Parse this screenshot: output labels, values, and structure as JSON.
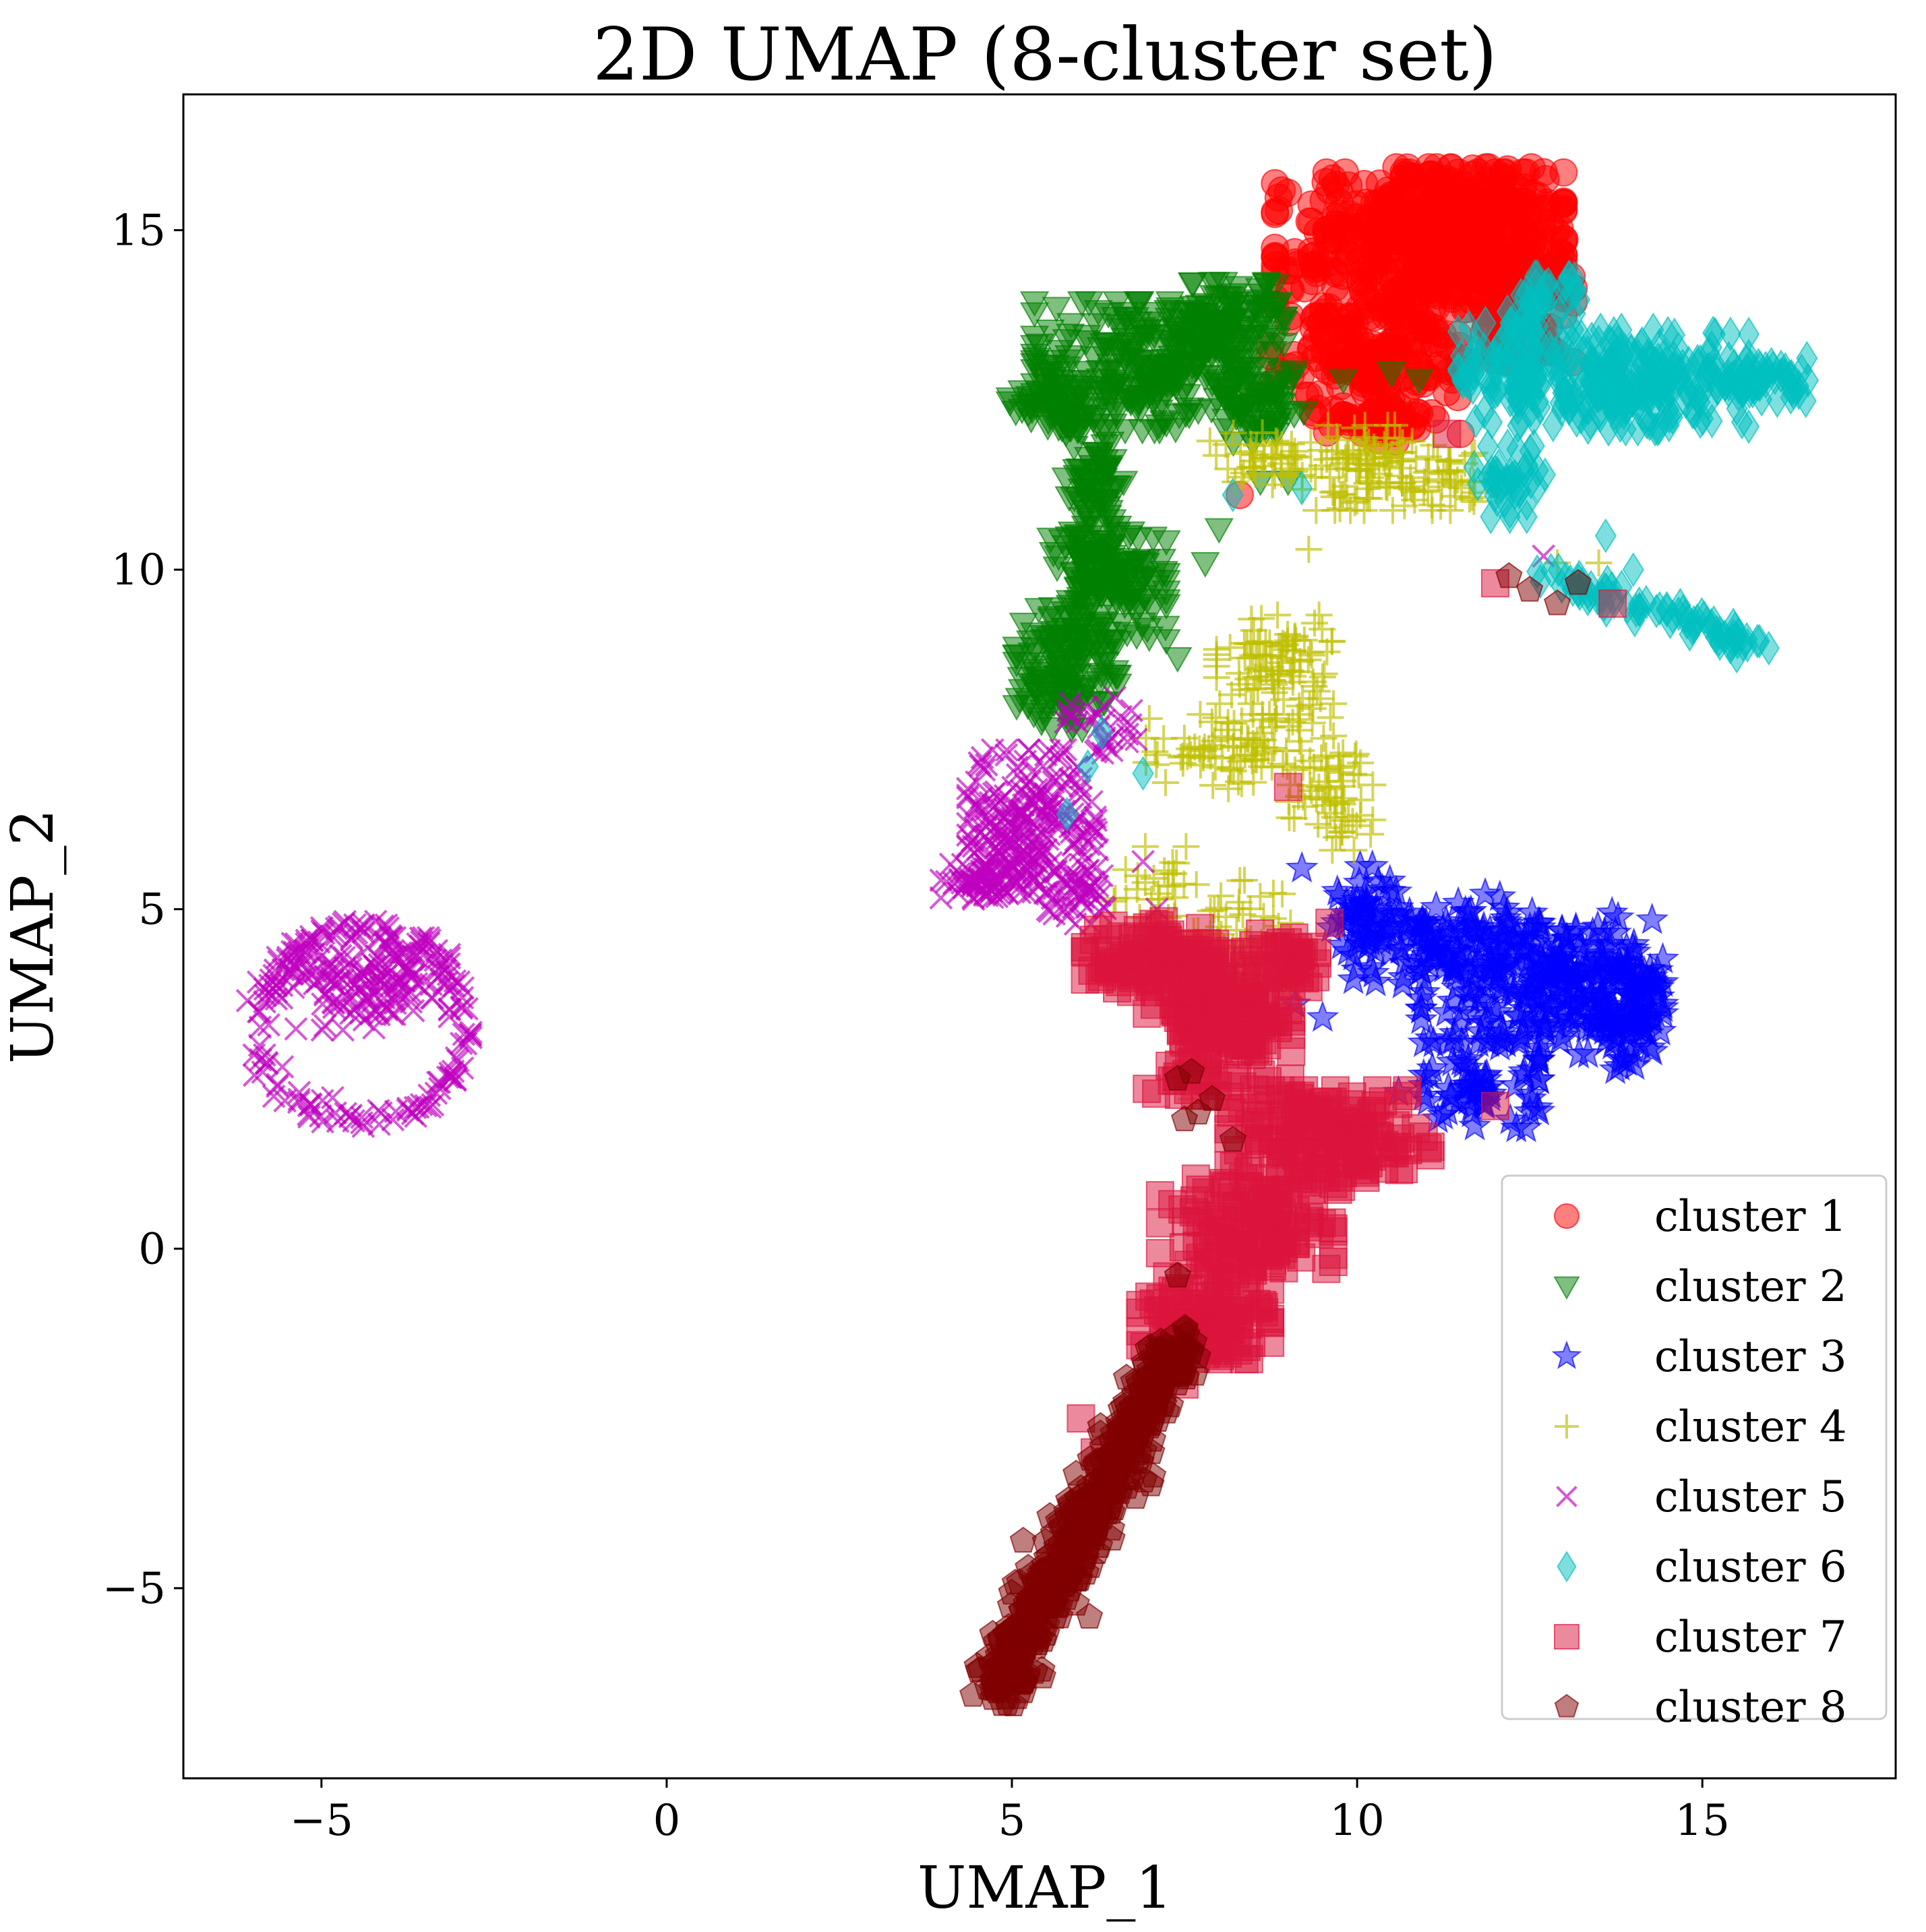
{
  "chart_data": {
    "type": "scatter",
    "title": "2D UMAP (8-cluster set)",
    "xlabel": "UMAP_1",
    "ylabel": "UMAP_2",
    "xlim": [
      -7,
      17.8
    ],
    "ylim": [
      -7.8,
      17
    ],
    "xticks": [
      -5,
      0,
      5,
      10,
      15
    ],
    "yticks": [
      -5,
      0,
      5,
      10,
      15
    ],
    "xtick_labels": [
      "−5",
      "0",
      "5",
      "10",
      "15"
    ],
    "ytick_labels": [
      "−5",
      "0",
      "5",
      "10",
      "15"
    ],
    "grid": false,
    "legend_position": "bottom-right",
    "series": [
      {
        "name": "cluster 1",
        "color": "#ff0000",
        "marker": "circle",
        "regions": [
          {
            "cx": 10.9,
            "cy": 14.7,
            "rx": 2.0,
            "ry": 1.1,
            "n": 420
          },
          {
            "cx": 11.6,
            "cy": 15.3,
            "rx": 1.1,
            "ry": 0.6,
            "n": 160
          },
          {
            "cx": 10.1,
            "cy": 13.0,
            "rx": 1.3,
            "ry": 0.7,
            "n": 150
          },
          {
            "cx": 12.3,
            "cy": 14.0,
            "rx": 0.8,
            "ry": 0.9,
            "n": 110
          },
          {
            "cx": 10.4,
            "cy": 12.2,
            "rx": 0.8,
            "ry": 0.3,
            "n": 40
          }
        ],
        "points": [
          [
            11.5,
            12.0
          ],
          [
            8.3,
            11.1
          ],
          [
            10.9,
            12.3
          ]
        ]
      },
      {
        "name": "cluster 2",
        "color": "#008000",
        "marker": "triangle-down",
        "regions": [
          {
            "cx": 7.0,
            "cy": 13.0,
            "rx": 1.6,
            "ry": 0.9,
            "n": 260
          },
          {
            "cx": 8.1,
            "cy": 13.6,
            "rx": 0.8,
            "ry": 0.6,
            "n": 110
          },
          {
            "cx": 5.6,
            "cy": 12.4,
            "rx": 0.6,
            "ry": 0.3,
            "n": 60
          },
          {
            "cx": 6.2,
            "cy": 11.2,
            "rx": 0.4,
            "ry": 0.9,
            "n": 70
          },
          {
            "cx": 6.4,
            "cy": 9.8,
            "rx": 0.8,
            "ry": 0.8,
            "n": 150
          },
          {
            "cx": 5.8,
            "cy": 8.6,
            "rx": 0.7,
            "ry": 0.9,
            "n": 130
          },
          {
            "cx": 8.6,
            "cy": 12.4,
            "rx": 0.6,
            "ry": 0.5,
            "n": 60
          }
        ],
        "points": [
          [
            8.6,
            11.3
          ],
          [
            8.0,
            10.6
          ],
          [
            9.0,
            11.3
          ],
          [
            7.8,
            10.1
          ],
          [
            9.8,
            12.8
          ],
          [
            10.5,
            12.9
          ],
          [
            10.9,
            12.8
          ],
          [
            7.4,
            8.7
          ]
        ]
      },
      {
        "name": "cluster 3",
        "color": "#0000ff",
        "marker": "star",
        "regions": [
          {
            "cx": 12.6,
            "cy": 4.0,
            "rx": 1.6,
            "ry": 0.9,
            "n": 220
          },
          {
            "cx": 13.8,
            "cy": 3.6,
            "rx": 0.6,
            "ry": 1.0,
            "n": 110
          },
          {
            "cx": 11.2,
            "cy": 4.5,
            "rx": 1.2,
            "ry": 0.7,
            "n": 90
          },
          {
            "cx": 11.8,
            "cy": 2.4,
            "rx": 0.8,
            "ry": 0.6,
            "n": 70
          },
          {
            "cx": 10.1,
            "cy": 5.0,
            "rx": 0.5,
            "ry": 0.6,
            "n": 40
          }
        ],
        "points": [
          [
            9.2,
            5.6
          ],
          [
            9.5,
            3.4
          ],
          [
            10.6,
            2.3
          ],
          [
            9.1,
            3.6
          ],
          [
            9.7,
            4.8
          ]
        ]
      },
      {
        "name": "cluster 4",
        "color": "#bfbf00",
        "marker": "plus",
        "regions": [
          {
            "cx": 8.8,
            "cy": 8.6,
            "rx": 0.8,
            "ry": 0.7,
            "n": 90
          },
          {
            "cx": 8.3,
            "cy": 7.4,
            "rx": 1.3,
            "ry": 0.6,
            "n": 90
          },
          {
            "cx": 10.2,
            "cy": 11.5,
            "rx": 1.1,
            "ry": 0.6,
            "n": 110
          },
          {
            "cx": 8.6,
            "cy": 11.6,
            "rx": 0.7,
            "ry": 0.4,
            "n": 40
          },
          {
            "cx": 9.6,
            "cy": 6.6,
            "rx": 0.6,
            "ry": 0.7,
            "n": 60
          },
          {
            "cx": 8.2,
            "cy": 4.8,
            "rx": 0.8,
            "ry": 0.6,
            "n": 40
          },
          {
            "cx": 7.0,
            "cy": 5.4,
            "rx": 0.5,
            "ry": 0.5,
            "n": 25
          },
          {
            "cx": 11.4,
            "cy": 11.3,
            "rx": 0.6,
            "ry": 0.4,
            "n": 30
          },
          {
            "cx": 8.5,
            "cy": 4.0,
            "rx": 0.5,
            "ry": 0.3,
            "n": 20
          }
        ],
        "points": [
          [
            12.9,
            10.1
          ],
          [
            13.5,
            10.1
          ],
          [
            9.3,
            10.3
          ],
          [
            7.6,
            2.2
          ],
          [
            7.9,
            2.4
          ]
        ]
      },
      {
        "name": "cluster 5",
        "color": "#bf00bf",
        "marker": "x",
        "regions": [
          {
            "cx": 5.3,
            "cy": 6.3,
            "rx": 0.9,
            "ry": 1.0,
            "n": 220
          },
          {
            "cx": 4.6,
            "cy": 5.4,
            "rx": 0.6,
            "ry": 0.25,
            "n": 70
          },
          {
            "cx": 6.0,
            "cy": 5.2,
            "rx": 0.5,
            "ry": 0.4,
            "n": 40
          },
          {
            "cx": 6.3,
            "cy": 7.6,
            "rx": 0.5,
            "ry": 0.5,
            "n": 30
          },
          {
            "cx": -4.4,
            "cy": 3.9,
            "rx": 1.2,
            "ry": 0.65,
            "n": 150
          }
        ],
        "points": [
          [
            12.7,
            10.2
          ],
          [
            6.8,
            7.5
          ],
          [
            6.9,
            5.7
          ],
          [
            7.1,
            5.0
          ]
        ],
        "ring": {
          "cx": -4.4,
          "cy": 3.3,
          "r": 1.42,
          "n": 150
        }
      },
      {
        "name": "cluster 6",
        "color": "#00bfbf",
        "marker": "diamond",
        "regions": [
          {
            "cx": 14.0,
            "cy": 12.8,
            "rx": 1.6,
            "ry": 0.7,
            "n": 240
          },
          {
            "cx": 12.3,
            "cy": 12.9,
            "rx": 0.8,
            "ry": 0.7,
            "n": 100
          },
          {
            "cx": 15.8,
            "cy": 12.8,
            "rx": 0.7,
            "ry": 0.3,
            "n": 60
          },
          {
            "cx": 12.2,
            "cy": 11.3,
            "rx": 0.5,
            "ry": 0.5,
            "n": 40
          },
          {
            "cx": 12.7,
            "cy": 13.9,
            "rx": 0.5,
            "ry": 0.4,
            "n": 40
          }
        ],
        "line": {
          "x0": 12.8,
          "y0": 9.9,
          "x1": 15.8,
          "y1": 8.9,
          "n": 80,
          "spread": 0.22
        },
        "points": [
          [
            13.6,
            10.5
          ],
          [
            14.0,
            10.0
          ],
          [
            5.8,
            6.4
          ],
          [
            6.1,
            7.1
          ],
          [
            6.3,
            7.6
          ],
          [
            6.9,
            7.0
          ],
          [
            8.2,
            11.1
          ],
          [
            9.2,
            11.2
          ]
        ]
      },
      {
        "name": "cluster 7",
        "color": "#dc143c",
        "marker": "square",
        "regions": [
          {
            "cx": 8.0,
            "cy": 3.3,
            "rx": 1.0,
            "ry": 1.0,
            "n": 170
          },
          {
            "cx": 7.0,
            "cy": 4.3,
            "rx": 0.9,
            "ry": 0.5,
            "n": 90
          },
          {
            "cx": 9.6,
            "cy": 1.6,
            "rx": 1.4,
            "ry": 0.7,
            "n": 160
          },
          {
            "cx": 8.4,
            "cy": 0.3,
            "rx": 1.2,
            "ry": 0.7,
            "n": 130
          },
          {
            "cx": 7.8,
            "cy": -1.0,
            "rx": 0.9,
            "ry": 0.6,
            "n": 100
          },
          {
            "cx": 8.9,
            "cy": 4.2,
            "rx": 0.5,
            "ry": 0.5,
            "n": 40
          }
        ],
        "points": [
          [
            9.0,
            6.8
          ],
          [
            9.6,
            4.8
          ],
          [
            11.3,
            12.0
          ],
          [
            12.0,
            9.8
          ],
          [
            13.7,
            9.5
          ],
          [
            12.0,
            2.1
          ],
          [
            6.0,
            -2.5
          ],
          [
            6.2,
            -3.0
          ],
          [
            7.5,
            -2.0
          ]
        ]
      },
      {
        "name": "cluster 8",
        "color": "#800000",
        "marker": "pentagon",
        "line": {
          "x0": 4.8,
          "y0": -6.5,
          "x1": 7.4,
          "y1": -1.4,
          "n": 520,
          "spread": 0.42
        },
        "points": [
          [
            7.7,
            2.0
          ],
          [
            8.2,
            1.6
          ],
          [
            7.6,
            2.6
          ],
          [
            7.9,
            2.2
          ],
          [
            7.5,
            1.9
          ],
          [
            7.4,
            2.5
          ],
          [
            7.4,
            -0.4
          ],
          [
            12.5,
            9.7
          ],
          [
            12.9,
            9.5
          ],
          [
            12.2,
            9.9
          ],
          [
            13.2,
            9.8
          ]
        ]
      }
    ]
  }
}
